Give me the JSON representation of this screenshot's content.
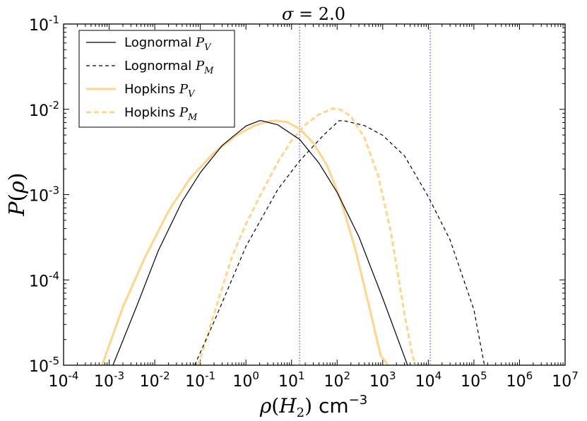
{
  "chart_data": {
    "type": "line",
    "title": "σ = 2.0",
    "xlabel": "ρ(H₂) cm⁻³",
    "ylabel": "P(ρ)",
    "xscale": "log",
    "yscale": "log",
    "xlim": [
      0.0001,
      10000000
    ],
    "ylim": [
      1e-05,
      0.1
    ],
    "x_ticks": [
      {
        "base": "10",
        "exp": "-4"
      },
      {
        "base": "10",
        "exp": "-3"
      },
      {
        "base": "10",
        "exp": "-2"
      },
      {
        "base": "10",
        "exp": "-1"
      },
      {
        "base": "10",
        "exp": "0"
      },
      {
        "base": "10",
        "exp": "1"
      },
      {
        "base": "10",
        "exp": "2"
      },
      {
        "base": "10",
        "exp": "3"
      },
      {
        "base": "10",
        "exp": "4"
      },
      {
        "base": "10",
        "exp": "5"
      },
      {
        "base": "10",
        "exp": "6"
      },
      {
        "base": "10",
        "exp": "7"
      }
    ],
    "y_ticks": [
      {
        "base": "10",
        "exp": "-5"
      },
      {
        "base": "10",
        "exp": "-4"
      },
      {
        "base": "10",
        "exp": "-3"
      },
      {
        "base": "10",
        "exp": "-2"
      },
      {
        "base": "10",
        "exp": "-1"
      }
    ],
    "vlines": [
      15,
      11000
    ],
    "legend_placement": "top-left",
    "series": [
      {
        "name": "Lognormal",
        "sub": "V",
        "color": "#000000",
        "style": "solid",
        "width": 1.2,
        "x": [
          0.00121,
          0.004,
          0.012,
          0.04,
          0.1,
          0.3,
          1,
          2,
          2.2,
          5,
          15,
          40,
          100,
          300,
          1000,
          3500
        ],
        "y": [
          1e-05,
          4.89e-05,
          0.000221,
          0.000835,
          0.00181,
          0.00376,
          0.00638,
          0.00736,
          0.00735,
          0.00658,
          0.00445,
          0.00234,
          0.00106,
          0.000321,
          6.09e-05,
          1e-05
        ]
      },
      {
        "name": "Lognormal",
        "sub": "M",
        "color": "#000000",
        "style": "dashed",
        "width": 1.2,
        "x": [
          0.075,
          0.2,
          1,
          5,
          15,
          50,
          110,
          150,
          400,
          1000,
          3000,
          10000,
          30000,
          100000,
          170000
        ],
        "y": [
          1e-05,
          3.24e-05,
          0.000247,
          0.00115,
          0.00248,
          0.00496,
          0.00736,
          0.0073,
          0.00644,
          0.00495,
          0.00285,
          0.000944,
          0.000294,
          4.47e-05,
          1e-05
        ]
      },
      {
        "name": "Hopkins",
        "sub": "V",
        "color": "#fed58a",
        "style": "solid",
        "width": 3,
        "x": [
          0.0007,
          0.002,
          0.006,
          0.02,
          0.06,
          0.2,
          0.6,
          1.5,
          3,
          4.5,
          8,
          15,
          30,
          60,
          120,
          250,
          500,
          900,
          1300
        ],
        "y": [
          1e-05,
          4.8e-05,
          0.00018,
          0.00064,
          0.00156,
          0.0031,
          0.00492,
          0.0064,
          0.0072,
          0.00735,
          0.0071,
          0.0059,
          0.00405,
          0.0022,
          0.00087,
          0.00023,
          5e-05,
          1.3e-05,
          1e-05
        ]
      },
      {
        "name": "Hopkins",
        "sub": "M",
        "color": "#fed58a",
        "style": "dashed",
        "width": 3,
        "x": [
          0.09,
          0.2,
          0.5,
          1,
          2,
          5,
          10,
          20,
          40,
          80,
          120,
          200,
          400,
          800,
          1500,
          3000,
          4500,
          5200
        ],
        "y": [
          1e-05,
          4e-05,
          0.00019,
          0.00045,
          0.00095,
          0.0024,
          0.0043,
          0.0066,
          0.0087,
          0.0102,
          0.0099,
          0.0083,
          0.0046,
          0.00165,
          0.00037,
          4e-05,
          1.3e-05,
          1e-05
        ]
      }
    ]
  }
}
